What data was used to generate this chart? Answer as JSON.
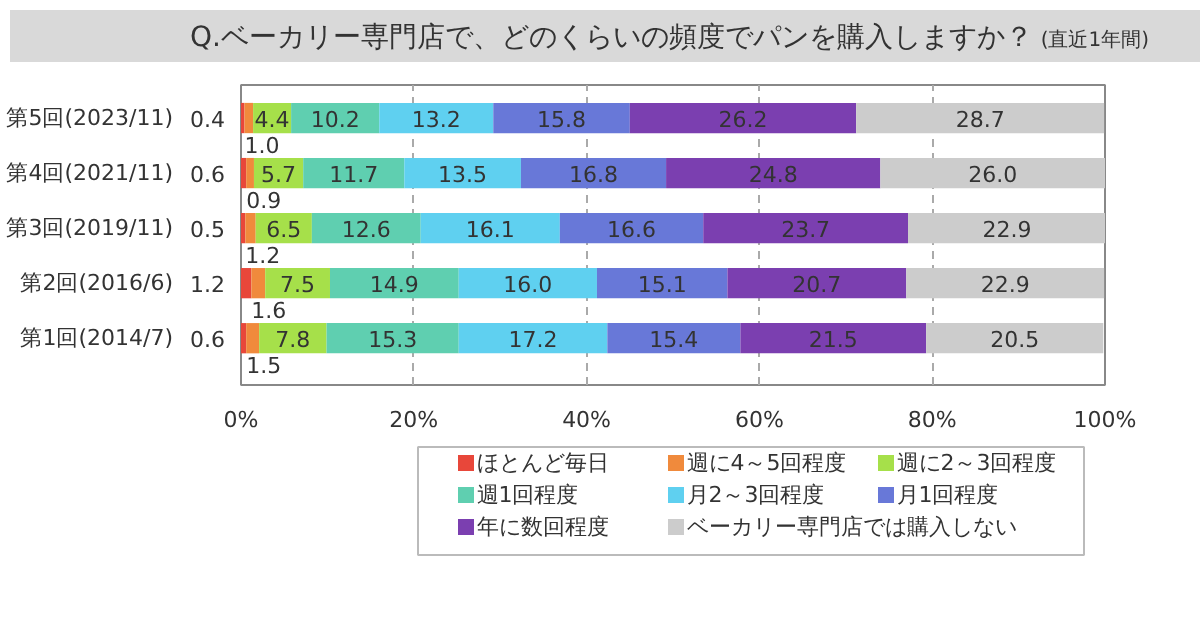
{
  "chart_data": {
    "type": "bar",
    "orientation": "horizontal",
    "stacked": true,
    "title": "Q.ベーカリー専門店で、どのくらいの頻度でパンを購入しますか？",
    "subtitle": "(直近1年間)",
    "categories": [
      "第5回(2023/11)",
      "第4回(2021/11)",
      "第3回(2019/11)",
      "第2回(2016/6)",
      "第1回(2014/7)"
    ],
    "series": [
      {
        "name": "ほとんど毎日",
        "color": "#e8473a",
        "values": [
          0.4,
          0.6,
          0.5,
          1.2,
          0.6
        ],
        "value_labels": [
          "0.4",
          "0.6",
          "0.5",
          "1.2",
          "0.6"
        ]
      },
      {
        "name": "週に4～5回程度",
        "color": "#f08a3c",
        "values": [
          1.0,
          0.9,
          1.2,
          1.6,
          1.5
        ],
        "value_labels": [
          "1.0",
          "0.9",
          "1.2",
          "1.6",
          "1.5"
        ]
      },
      {
        "name": "週に2～3回程度",
        "color": "#a6e04a",
        "values": [
          4.4,
          5.7,
          6.5,
          7.5,
          7.8
        ],
        "value_labels": [
          "4.4",
          "5.7",
          "6.5",
          "7.5",
          "7.8"
        ]
      },
      {
        "name": "週1回程度",
        "color": "#5fcfb0",
        "values": [
          10.2,
          11.7,
          12.6,
          14.9,
          15.3
        ],
        "value_labels": [
          "10.2",
          "11.7",
          "12.6",
          "14.9",
          "15.3"
        ]
      },
      {
        "name": "月2～3回程度",
        "color": "#5fd0f0",
        "values": [
          13.2,
          13.5,
          16.1,
          16.0,
          17.2
        ],
        "value_labels": [
          "13.2",
          "13.5",
          "16.1",
          "16.0",
          "17.2"
        ]
      },
      {
        "name": "月1回程度",
        "color": "#6878d8",
        "values": [
          15.8,
          16.8,
          16.6,
          15.1,
          15.4
        ],
        "value_labels": [
          "15.8",
          "16.8",
          "16.6",
          "15.1",
          "15.4"
        ]
      },
      {
        "name": "年に数回程度",
        "color": "#7b3fb0",
        "values": [
          26.2,
          24.8,
          23.7,
          20.7,
          21.5
        ],
        "value_labels": [
          "26.2",
          "24.8",
          "23.7",
          "20.7",
          "21.5"
        ]
      },
      {
        "name": "ベーカリー専門店では購入しない",
        "color": "#cccccc",
        "values": [
          28.7,
          26.0,
          22.9,
          22.9,
          20.5
        ],
        "value_labels": [
          "28.7",
          "26.0",
          "22.9",
          "22.9",
          "20.5"
        ]
      }
    ],
    "xlim": [
      0,
      100
    ],
    "xticks": [
      {
        "value": 0,
        "label": "0%"
      },
      {
        "value": 20,
        "label": "20%"
      },
      {
        "value": 40,
        "label": "40%"
      },
      {
        "value": 60,
        "label": "60%"
      },
      {
        "value": 80,
        "label": "80%"
      },
      {
        "value": 100,
        "label": "100%"
      }
    ],
    "grid": "x",
    "legend": "bottom"
  }
}
